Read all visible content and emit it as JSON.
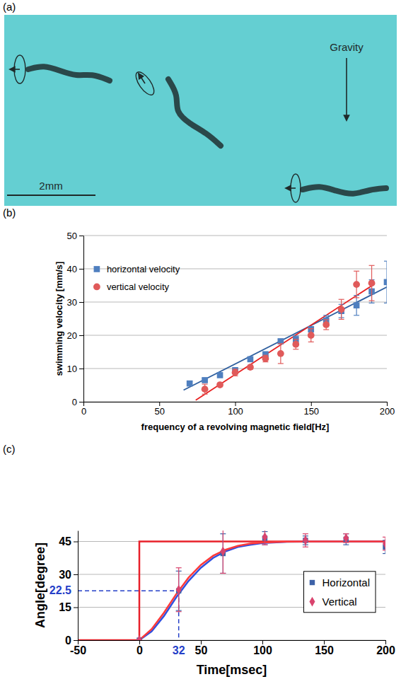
{
  "panel_labels": [
    "(a)",
    "(b)",
    "(c)"
  ],
  "photo": {
    "scale_bar": "2mm",
    "arrow_label": "Gravity"
  },
  "chart_data": [
    {
      "type": "scatter",
      "x_label": "frequency of a revolving magnetic field[Hz]",
      "y_label": "swimming velocity [mm/s]",
      "xlim": [
        0,
        200
      ],
      "xticks": [
        0,
        50,
        100,
        150,
        200
      ],
      "ylim": [
        0,
        50
      ],
      "yticks": [
        0,
        10,
        20,
        30,
        40,
        50
      ],
      "grid": true,
      "legend": "top-left",
      "series": [
        {
          "name": "horizontal velocity",
          "color": "#4f7fbf",
          "marker": "square",
          "x": [
            70,
            80,
            90,
            100,
            110,
            120,
            130,
            140,
            150,
            160,
            170,
            180,
            190,
            200
          ],
          "values": [
            5.5,
            6.5,
            8,
            9.5,
            12.8,
            14.3,
            18.2,
            18.8,
            21.8,
            24.5,
            27.3,
            29,
            33.2,
            36
          ],
          "errors": [
            0.6,
            0.5,
            0.5,
            0.5,
            0.5,
            0.6,
            0.6,
            1,
            0.8,
            1.5,
            2,
            3,
            3.5,
            6.3
          ]
        },
        {
          "name": "vertical velocity",
          "color": "#e05a5a",
          "marker": "circle",
          "x": [
            80,
            90,
            100,
            110,
            120,
            130,
            140,
            150,
            160,
            170,
            180,
            190
          ],
          "values": [
            3.8,
            5.1,
            8.8,
            10.4,
            13,
            14.5,
            17.3,
            20,
            23.2,
            27.8,
            35.3,
            35.7
          ],
          "errors": [
            1.5,
            0.5,
            1,
            0.6,
            1,
            3,
            1.5,
            2,
            1.5,
            3,
            4,
            5.3
          ]
        },
        {
          "type": "line",
          "color": "#2f5f9f",
          "x": [
            66,
            200
          ],
          "values": [
            3.5,
            34.5
          ]
        },
        {
          "type": "line",
          "color": "#e82020",
          "x": [
            74,
            192
          ],
          "values": [
            0.5,
            35.5
          ]
        }
      ]
    },
    {
      "type": "scatter",
      "x_label": "Time[msec]",
      "y_label": "Angle[degree]",
      "xlim": [
        -50,
        200
      ],
      "xticks": [
        -50,
        0,
        50,
        100,
        150,
        200
      ],
      "ylim": [
        0,
        50
      ],
      "yticks": [
        0,
        15,
        30,
        45
      ],
      "grid": true,
      "legend": "right",
      "annotations": [
        {
          "x": 32,
          "y": 22.5
        }
      ],
      "series": [
        {
          "type": "line",
          "color": "#e8202a",
          "x": [
            -50,
            0,
            0,
            200
          ],
          "values": [
            0,
            0,
            45,
            45
          ]
        },
        {
          "type": "line",
          "color": "#3050e0",
          "x": [
            0,
            10,
            20,
            30,
            40,
            50,
            60,
            70,
            80,
            90,
            100,
            120,
            150,
            200
          ],
          "values": [
            0,
            4,
            11,
            19.5,
            27,
            33,
            37.5,
            40.5,
            42.5,
            43.5,
            44.3,
            44.8,
            45,
            45
          ]
        },
        {
          "type": "line",
          "color": "#ff3a3a",
          "x": [
            0,
            10,
            20,
            30,
            40,
            50,
            60,
            70,
            80,
            90,
            100,
            120,
            150,
            200
          ],
          "values": [
            0,
            5,
            12.5,
            21,
            28.5,
            34.3,
            38.5,
            41.2,
            43,
            44,
            44.5,
            44.9,
            45,
            45
          ]
        },
        {
          "name": "Horizontal",
          "color": "#3d62a8",
          "marker": "square",
          "x": [
            0,
            32,
            68,
            102,
            135,
            168,
            200
          ],
          "values": [
            0,
            22.5,
            39.5,
            46.5,
            45.5,
            46,
            42.5
          ],
          "errors": [
            0,
            9,
            9,
            3,
            2,
            2.5,
            3
          ]
        },
        {
          "name": "Vertical",
          "color": "#d9446e",
          "marker": "diamond",
          "x": [
            0,
            32,
            68,
            102,
            135,
            168,
            200
          ],
          "values": [
            0,
            23,
            40.5,
            47,
            45.5,
            46.5,
            44
          ],
          "errors": [
            0,
            10,
            10,
            3.5,
            3,
            2,
            3
          ]
        }
      ]
    }
  ]
}
